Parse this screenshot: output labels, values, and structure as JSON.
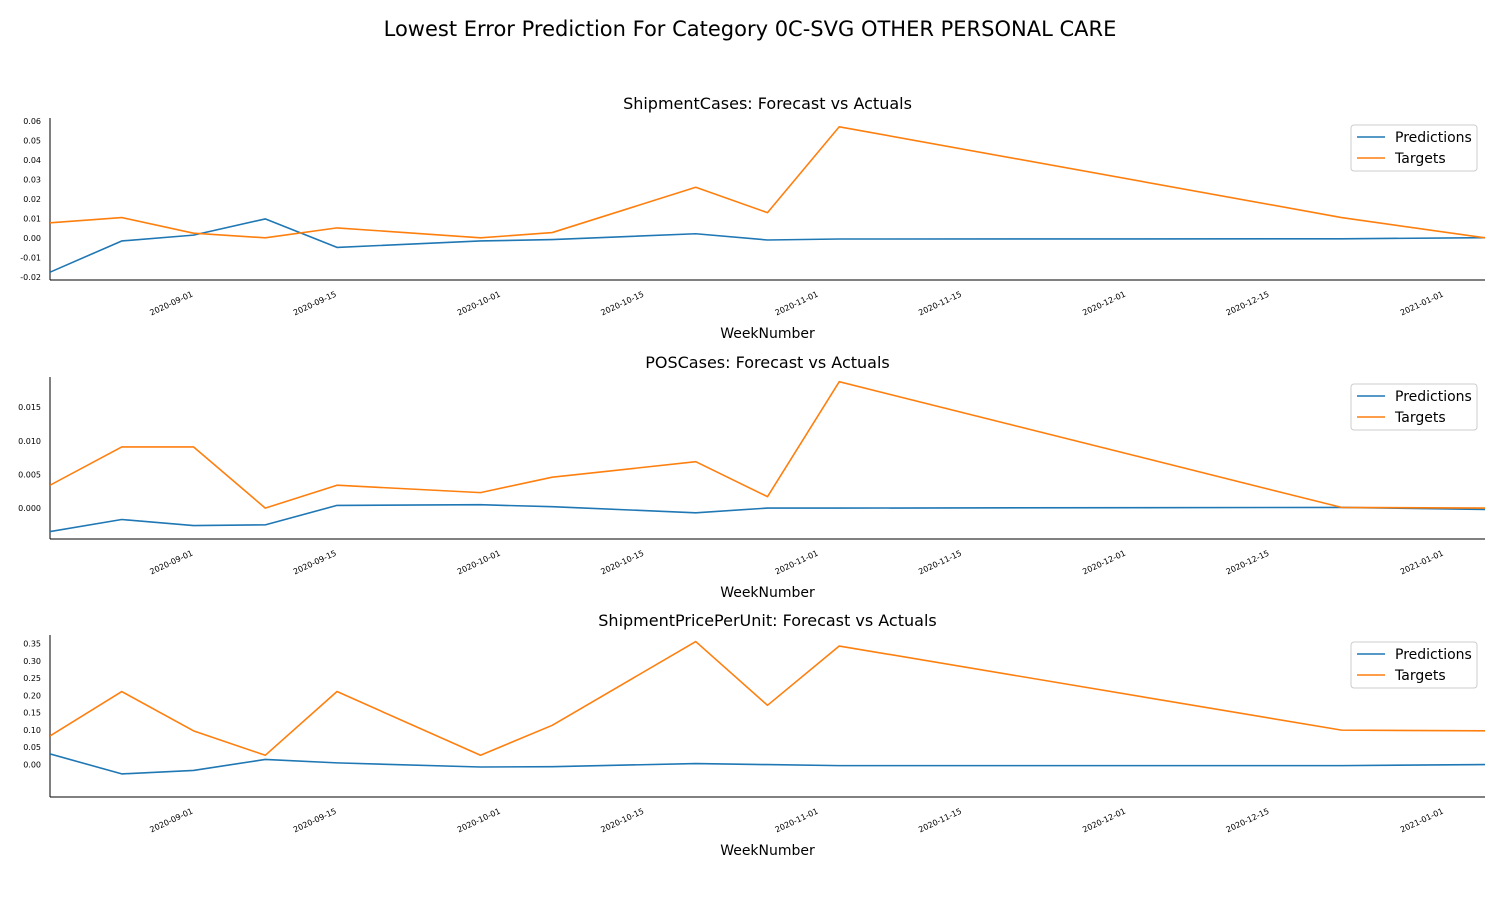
{
  "suptitle": "Lowest Error Prediction For Category 0C-SVG OTHER PERSONAL CARE",
  "colors": {
    "predictions": "#1f77b4",
    "targets": "#ff7f0e"
  },
  "chart_data": [
    {
      "type": "line",
      "title": "ShipmentCases: Forecast vs Actuals",
      "xlabel": "WeekNumber",
      "ylabel": "",
      "x": [
        "2020-08-18",
        "2020-08-25",
        "2020-09-01",
        "2020-09-08",
        "2020-09-15",
        "2020-09-29",
        "2020-10-06",
        "2020-10-20",
        "2020-10-27",
        "2020-11-03",
        "2020-12-22",
        "2021-01-05"
      ],
      "xlim": [
        "2020-08-18",
        "2021-01-05"
      ],
      "xticks": [
        "2020-09-01",
        "2020-09-15",
        "2020-10-01",
        "2020-10-15",
        "2020-11-01",
        "2020-11-15",
        "2020-12-01",
        "2020-12-15",
        "2021-01-01"
      ],
      "ylim": [
        -0.0215,
        0.0615
      ],
      "yticks": [
        "-0.02",
        "-0.01",
        "0.00",
        "0.01",
        "0.02",
        "0.03",
        "0.04",
        "0.05",
        "0.06"
      ],
      "legend_position": "top-right",
      "series": [
        {
          "name": "Predictions",
          "values": [
            -0.0175,
            -0.0015,
            0.0015,
            0.0098,
            -0.0048,
            -0.0015,
            -0.0008,
            0.0022,
            -0.001,
            -0.0005,
            -0.0004,
            0.0002
          ]
        },
        {
          "name": "Targets",
          "values": [
            0.0078,
            0.0105,
            0.0025,
            0.0001,
            0.0052,
            0.0001,
            0.0028,
            0.026,
            0.013,
            0.057,
            0.0105,
            0.0001
          ]
        }
      ]
    },
    {
      "type": "line",
      "title": "POSCases: Forecast vs Actuals",
      "xlabel": "WeekNumber",
      "ylabel": "",
      "x": [
        "2020-08-18",
        "2020-08-25",
        "2020-09-01",
        "2020-09-08",
        "2020-09-15",
        "2020-09-29",
        "2020-10-06",
        "2020-10-20",
        "2020-10-27",
        "2020-11-03",
        "2020-12-22",
        "2021-01-05"
      ],
      "xlim": [
        "2020-08-18",
        "2021-01-05"
      ],
      "xticks": [
        "2020-09-01",
        "2020-09-15",
        "2020-10-01",
        "2020-10-15",
        "2020-11-01",
        "2020-11-15",
        "2020-12-01",
        "2020-12-15",
        "2021-01-01"
      ],
      "ylim": [
        -0.0046,
        0.0195
      ],
      "yticks": [
        "0.000",
        "0.005",
        "0.010",
        "0.015"
      ],
      "legend_position": "top-right",
      "series": [
        {
          "name": "Predictions",
          "values": [
            -0.0035,
            -0.0017,
            -0.0026,
            -0.0025,
            0.0004,
            0.0005,
            0.0002,
            -0.0007,
            0.0,
            0.0,
            0.0001,
            -0.0002
          ]
        },
        {
          "name": "Targets",
          "values": [
            0.0034,
            0.0091,
            0.0091,
            0.0,
            0.0034,
            0.0023,
            0.0046,
            0.0069,
            0.0017,
            0.0188,
            0.0001,
            0.0
          ]
        }
      ]
    },
    {
      "type": "line",
      "title": "ShipmentPricePerUnit: Forecast vs Actuals",
      "xlabel": "WeekNumber",
      "ylabel": "",
      "x": [
        "2020-08-18",
        "2020-08-25",
        "2020-09-01",
        "2020-09-08",
        "2020-09-15",
        "2020-09-29",
        "2020-10-06",
        "2020-10-20",
        "2020-10-27",
        "2020-11-03",
        "2020-12-22",
        "2021-01-05"
      ],
      "xlim": [
        "2020-08-18",
        "2021-01-05"
      ],
      "xticks": [
        "2020-09-01",
        "2020-09-15",
        "2020-10-01",
        "2020-10-15",
        "2020-11-01",
        "2020-11-15",
        "2020-12-01",
        "2020-12-15",
        "2021-01-01"
      ],
      "ylim": [
        -0.095,
        0.375
      ],
      "yticks": [
        "0.00",
        "0.05",
        "0.10",
        "0.15",
        "0.20",
        "0.25",
        "0.30",
        "0.35"
      ],
      "legend_position": "top-right",
      "series": [
        {
          "name": "Predictions",
          "values": [
            0.03,
            -0.028,
            -0.018,
            0.014,
            0.004,
            -0.008,
            -0.007,
            0.002,
            -0.001,
            -0.004,
            -0.004,
            -0.001
          ]
        },
        {
          "name": "Targets",
          "values": [
            0.082,
            0.211,
            0.097,
            0.026,
            0.211,
            0.026,
            0.113,
            0.356,
            0.171,
            0.343,
            0.099,
            0.097
          ]
        }
      ]
    }
  ]
}
